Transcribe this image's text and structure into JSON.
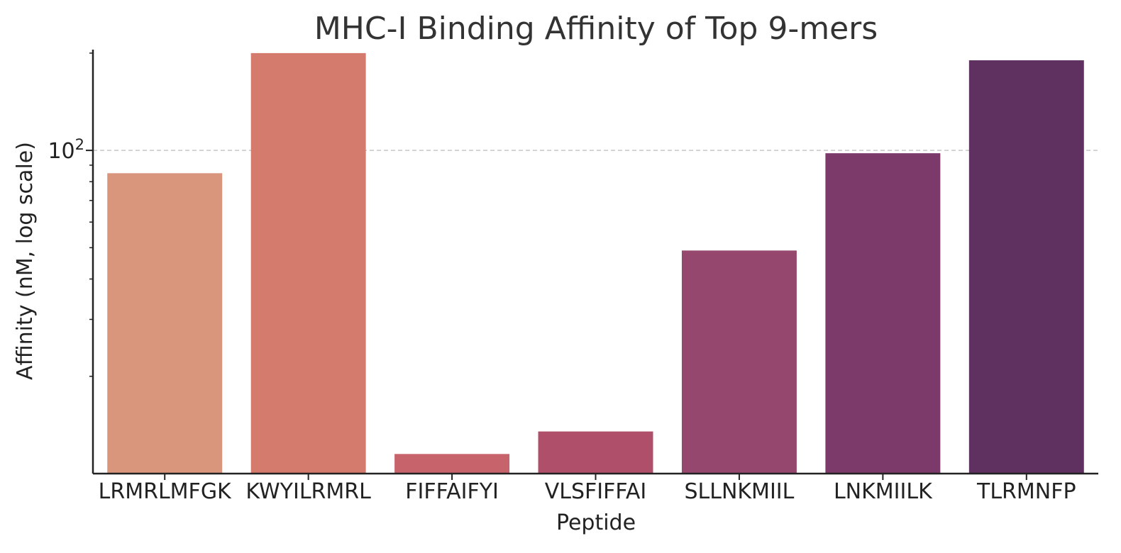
{
  "chart_data": {
    "type": "bar",
    "title": "MHC-I Binding Affinity of Top 9-mers",
    "xlabel": "Peptide",
    "ylabel": "Affinity (nM, log scale)",
    "yscale": "log",
    "ylim": [
      10,
      205
    ],
    "grid": "y-major-dashed",
    "y_major_ticks": [
      {
        "value": 100,
        "base": "10",
        "exp": "2"
      }
    ],
    "y_minor_ticks": [
      20,
      30,
      40,
      50,
      60,
      70,
      80,
      90,
      200
    ],
    "categories": [
      "LRMRLMFGK",
      "KWYILRMRL",
      "FIFFAIFYI",
      "VLSFIFFAI",
      "SLLNKMIIL",
      "LNKMIILK",
      "TLRMNFP"
    ],
    "values": [
      85,
      200,
      11.5,
      13.5,
      49,
      98,
      190
    ],
    "colors": [
      "#d9967c",
      "#d47b6d",
      "#c7646b",
      "#b04f69",
      "#96476d",
      "#7b3a6a",
      "#5f3160"
    ]
  }
}
